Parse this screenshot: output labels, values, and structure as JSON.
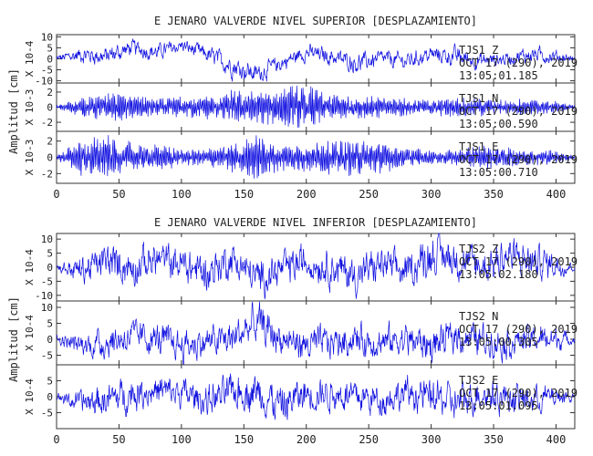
{
  "chart_data": [
    {
      "type": "line",
      "title": "E JENARO VALVERDE NIVEL SUPERIOR [DESPLAZAMIENTO]",
      "ylabel": "Amplitud [cm]",
      "xlim": [
        0,
        415
      ],
      "xticks": [
        0,
        50,
        100,
        150,
        200,
        250,
        300,
        350,
        400
      ],
      "line_color": "#1010e0",
      "panels": [
        {
          "scale": "X 10-4",
          "yticks": [
            10,
            5,
            0,
            -5,
            -10
          ],
          "ylim": [
            -11,
            11
          ],
          "station": "TJS1 Z",
          "date": "OCT 17 (290), 2019",
          "time": "13:05:01.185",
          "series": {
            "x": [
              0,
              20,
              40,
              60,
              80,
              100,
              120,
              140,
              160,
              180,
              200,
              220,
              240,
              260,
              280,
              300,
              320,
              340,
              360,
              380,
              400,
              415
            ],
            "y": [
              0,
              2,
              1,
              5,
              3,
              6,
              2,
              -3,
              -7,
              -2,
              3,
              1,
              -2,
              0,
              -1,
              2,
              1,
              -1,
              0,
              2,
              1,
              0
            ],
            "amplitude": [
              1.5,
              3,
              3.5,
              3,
              3,
              2.5,
              3,
              4,
              3.5,
              3,
              3,
              3,
              3.5,
              3,
              3,
              3,
              3.5,
              3,
              2.5,
              3,
              2.5,
              1
            ]
          }
        },
        {
          "scale": "X 10-3",
          "yticks": [
            2,
            0,
            -2
          ],
          "ylim": [
            -3.2,
            3.2
          ],
          "station": "TJS1 N",
          "date": "OCT 17 (290), 2019",
          "time": "13:05:00.590",
          "series": {
            "x": [
              0,
              20,
              40,
              60,
              80,
              100,
              120,
              140,
              160,
              180,
              200,
              220,
              240,
              260,
              280,
              300,
              320,
              340,
              360,
              380,
              400,
              415
            ],
            "y": [
              0,
              0,
              0,
              0,
              0,
              0,
              0,
              0,
              0,
              0,
              0,
              0,
              0,
              0,
              0,
              0,
              0,
              0,
              0,
              0,
              0,
              0
            ],
            "amplitude": [
              0.3,
              1.2,
              1.8,
              1.5,
              1.2,
              1.3,
              1.5,
              2.3,
              2.0,
              2.6,
              2.8,
              2.0,
              1.5,
              1.6,
              1.2,
              1.0,
              1.3,
              1.2,
              1.0,
              1.1,
              0.8,
              0.2
            ]
          }
        },
        {
          "scale": "X 10-3",
          "yticks": [
            2,
            0,
            -2
          ],
          "ylim": [
            -3.2,
            3.2
          ],
          "station": "TJS1 E",
          "date": "OCT 17 (290), 2019",
          "time": "13:05:00.710",
          "series": {
            "x": [
              0,
              20,
              40,
              60,
              80,
              100,
              120,
              140,
              160,
              180,
              200,
              220,
              240,
              260,
              280,
              300,
              320,
              340,
              360,
              380,
              400,
              415
            ],
            "y": [
              0,
              0,
              0,
              0,
              0,
              0,
              0,
              0,
              0,
              0,
              0,
              0,
              0,
              0,
              0,
              0,
              0,
              0,
              0,
              0,
              0,
              0
            ],
            "amplitude": [
              0.3,
              2.2,
              2.6,
              1.8,
              1.5,
              1.2,
              1.0,
              1.8,
              2.6,
              1.8,
              1.7,
              2.0,
              2.2,
              1.8,
              1.3,
              0.8,
              0.9,
              1.5,
              1.3,
              1.0,
              0.8,
              0.2
            ]
          }
        }
      ]
    },
    {
      "type": "line",
      "title": "E JENARO VALVERDE NIVEL INFERIOR [DESPLAZAMIENTO]",
      "ylabel": "Amplitud [cm]",
      "xlim": [
        0,
        415
      ],
      "xticks": [
        0,
        50,
        100,
        150,
        200,
        250,
        300,
        350,
        400
      ],
      "line_color": "#1010e0",
      "panels": [
        {
          "scale": "X 10-4",
          "yticks": [
            10,
            5,
            0,
            -5,
            -10
          ],
          "ylim": [
            -12,
            12
          ],
          "station": "TJS2 Z",
          "date": "OCT 17 (290), 2019",
          "time": "13:05:02.180",
          "series": {
            "x": [
              0,
              20,
              40,
              60,
              80,
              100,
              120,
              140,
              160,
              180,
              200,
              220,
              240,
              260,
              280,
              300,
              320,
              340,
              360,
              380,
              400,
              415
            ],
            "y": [
              0,
              -1,
              2,
              0,
              3,
              1,
              -2,
              3,
              -4,
              -1,
              2,
              0,
              -3,
              1,
              -2,
              5,
              3,
              0,
              4,
              2,
              1,
              0
            ],
            "amplitude": [
              1,
              4,
              5,
              5.5,
              5,
              5,
              5.5,
              5,
              5,
              5,
              5,
              5,
              5.5,
              5,
              5,
              6,
              5.5,
              5,
              6,
              5,
              4,
              1
            ]
          }
        },
        {
          "scale": "X 10-4",
          "yticks": [
            10,
            5,
            0,
            -5
          ],
          "ylim": [
            -8,
            12
          ],
          "station": "TJS2 N",
          "date": "OCT 17 (290), 2019",
          "time": "13:05:00.305",
          "series": {
            "x": [
              0,
              20,
              40,
              60,
              80,
              100,
              120,
              140,
              160,
              180,
              200,
              220,
              240,
              260,
              280,
              300,
              320,
              340,
              360,
              380,
              400,
              415
            ],
            "y": [
              0,
              -2,
              -1,
              1,
              0,
              -2,
              -1,
              0,
              5,
              0,
              -2,
              -1,
              0,
              -1,
              0,
              -2,
              1,
              0,
              -1,
              0,
              0,
              0
            ],
            "amplitude": [
              1,
              3,
              4,
              4,
              4,
              4,
              4,
              4.5,
              5.5,
              4,
              4,
              4,
              4,
              4,
              4,
              4.5,
              4,
              4,
              4,
              3.5,
              3,
              1
            ]
          }
        },
        {
          "scale": "X 10-4",
          "yticks": [
            5,
            0,
            -5
          ],
          "ylim": [
            -10,
            10
          ],
          "station": "TJS2 E",
          "date": "OCT 17 (290), 2019",
          "time": "13:05:01.095",
          "series": {
            "x": [
              0,
              20,
              40,
              60,
              80,
              100,
              120,
              140,
              160,
              180,
              200,
              220,
              240,
              260,
              280,
              300,
              320,
              340,
              360,
              380,
              400,
              415
            ],
            "y": [
              0,
              -2,
              -1,
              1,
              2,
              1,
              -1,
              1,
              2,
              -3,
              1,
              1,
              0,
              -1,
              1,
              0,
              -2,
              1,
              0,
              -1,
              0,
              0
            ],
            "amplitude": [
              1,
              3,
              4,
              4,
              4,
              4,
              4,
              4.5,
              5,
              5,
              4.5,
              4,
              4,
              4,
              4,
              4.5,
              4.5,
              4,
              4,
              4,
              3,
              1
            ]
          }
        }
      ]
    }
  ]
}
